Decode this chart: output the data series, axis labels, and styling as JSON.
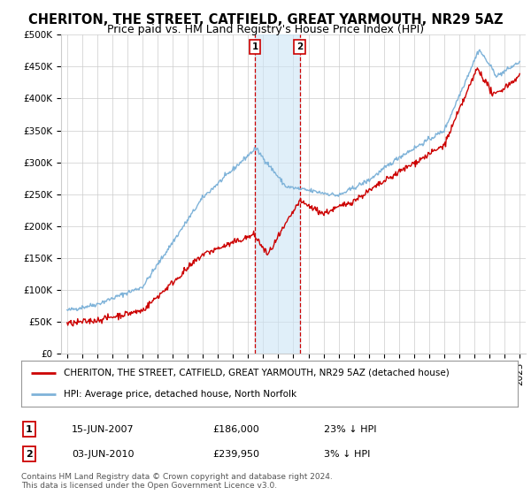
{
  "title": "CHERITON, THE STREET, CATFIELD, GREAT YARMOUTH, NR29 5AZ",
  "subtitle": "Price paid vs. HM Land Registry's House Price Index (HPI)",
  "ylim": [
    0,
    500000
  ],
  "yticks": [
    0,
    50000,
    100000,
    150000,
    200000,
    250000,
    300000,
    350000,
    400000,
    450000,
    500000
  ],
  "ytick_labels": [
    "£0",
    "£50K",
    "£100K",
    "£150K",
    "£200K",
    "£250K",
    "£300K",
    "£350K",
    "£400K",
    "£450K",
    "£500K"
  ],
  "xlim_start": 1994.6,
  "xlim_end": 2025.4,
  "xticks": [
    1995,
    1996,
    1997,
    1998,
    1999,
    2000,
    2001,
    2002,
    2003,
    2004,
    2005,
    2006,
    2007,
    2008,
    2009,
    2010,
    2011,
    2012,
    2013,
    2014,
    2015,
    2016,
    2017,
    2018,
    2019,
    2020,
    2021,
    2022,
    2023,
    2024,
    2025
  ],
  "marker1_x": 2007.45,
  "marker2_x": 2010.42,
  "marker1_label": "1",
  "marker2_label": "2",
  "shade_color": "#cce5f5",
  "shade_alpha": 0.6,
  "vline_color": "#cc0000",
  "vline_style": "--",
  "property_line_color": "#cc0000",
  "hpi_line_color": "#7fb3d9",
  "legend_label_property": "CHERITON, THE STREET, CATFIELD, GREAT YARMOUTH, NR29 5AZ (detached house)",
  "legend_label_hpi": "HPI: Average price, detached house, North Norfolk",
  "table_row1": [
    "1",
    "15-JUN-2007",
    "£186,000",
    "23% ↓ HPI"
  ],
  "table_row2": [
    "2",
    "03-JUN-2010",
    "£239,950",
    "3% ↓ HPI"
  ],
  "footer": "Contains HM Land Registry data © Crown copyright and database right 2024.\nThis data is licensed under the Open Government Licence v3.0.",
  "background_color": "#ffffff",
  "grid_color": "#cccccc",
  "title_fontsize": 10.5,
  "subtitle_fontsize": 9,
  "tick_fontsize": 7.5
}
